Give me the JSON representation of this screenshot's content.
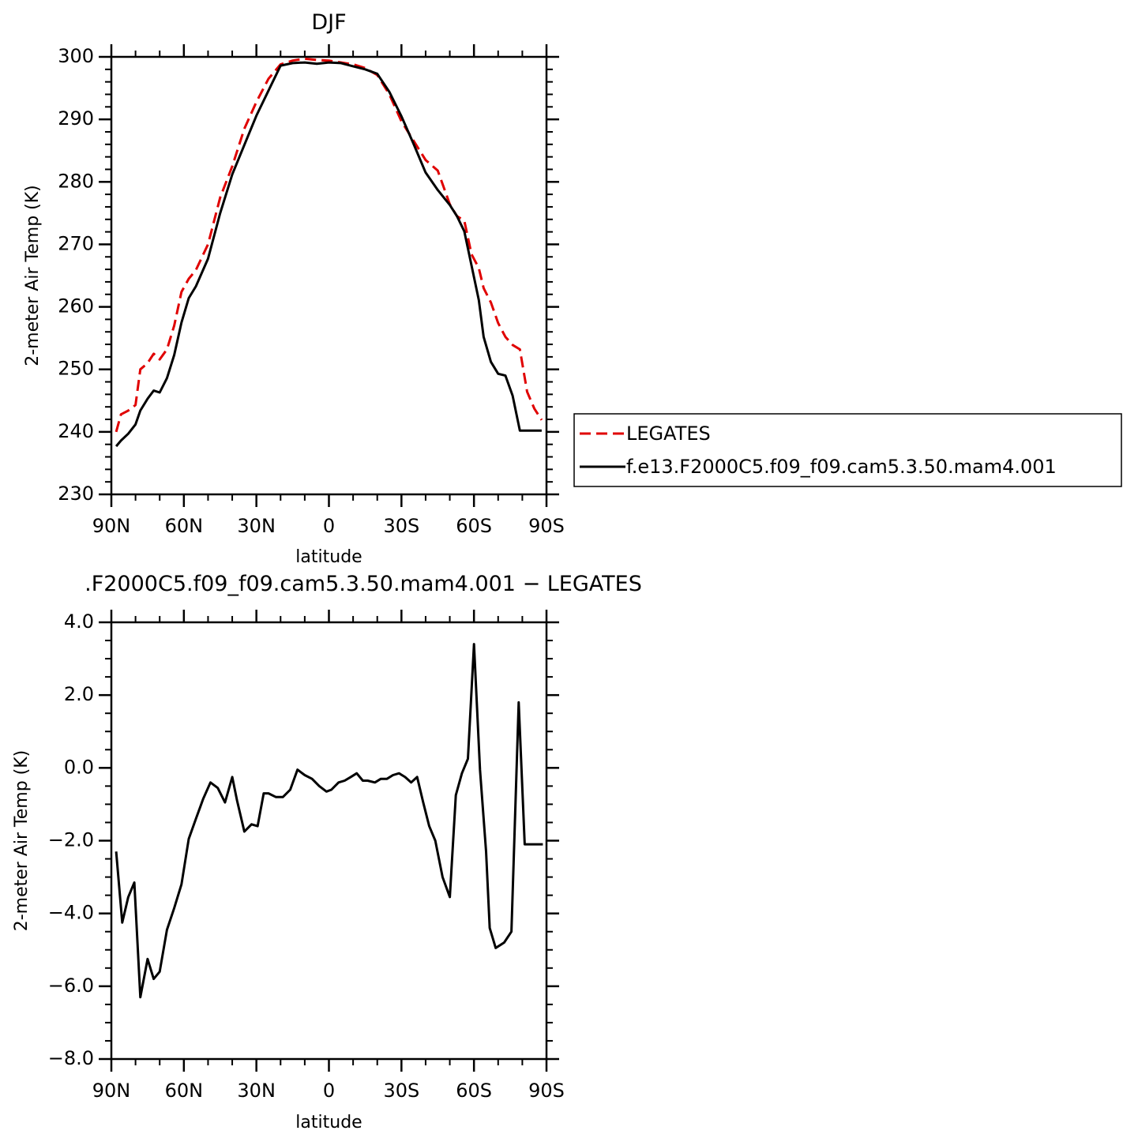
{
  "chart_data": [
    {
      "type": "line",
      "title": "DJF",
      "xlabel": "latitude",
      "ylabel": "2-meter Air Temp (K)",
      "xlim": [
        90,
        -90
      ],
      "ylim": [
        230,
        300
      ],
      "x_ticks": [
        {
          "value": 90,
          "label": "90N"
        },
        {
          "value": 60,
          "label": "60N"
        },
        {
          "value": 30,
          "label": "30N"
        },
        {
          "value": 0,
          "label": "0"
        },
        {
          "value": -30,
          "label": "30S"
        },
        {
          "value": -60,
          "label": "60S"
        },
        {
          "value": -90,
          "label": "90S"
        }
      ],
      "y_ticks": [
        {
          "value": 300,
          "label": "300"
        },
        {
          "value": 290,
          "label": "290"
        },
        {
          "value": 280,
          "label": "280"
        },
        {
          "value": 270,
          "label": "270"
        },
        {
          "value": 260,
          "label": "260"
        },
        {
          "value": 250,
          "label": "250"
        },
        {
          "value": 240,
          "label": "240"
        },
        {
          "value": 230,
          "label": "230"
        }
      ],
      "legend_position": "right",
      "series": [
        {
          "name": "LEGATES",
          "color": "#e00000",
          "dash": true,
          "x": [
            88,
            86,
            83,
            80,
            78,
            75,
            72.5,
            70,
            67,
            64,
            61,
            58,
            55,
            50,
            45,
            40,
            35,
            30,
            25,
            20,
            15,
            10,
            5,
            0,
            -5,
            -10,
            -15,
            -20,
            -25,
            -30,
            -35,
            -40,
            -45,
            -50,
            -53,
            -56,
            -59,
            -62,
            -64,
            -67,
            -70,
            -73,
            -76,
            -79,
            -82,
            -85,
            -88
          ],
          "y": [
            240,
            242.8,
            243.4,
            244.3,
            250,
            251,
            252.5,
            251.6,
            253.2,
            257,
            262.4,
            264.5,
            265.9,
            270,
            277.5,
            282.5,
            288.5,
            292.8,
            296.5,
            298.8,
            299.4,
            299.7,
            299.5,
            299.4,
            299.1,
            298.8,
            298.2,
            297.1,
            294,
            289.7,
            286.6,
            283.5,
            281.8,
            276.4,
            274.5,
            273.8,
            268.4,
            266.2,
            263,
            260.7,
            257.4,
            255.2,
            253.9,
            253.2,
            246.4,
            243.7,
            241.9
          ]
        },
        {
          "name": "f.e13.F2000C5.f09_f09.cam5.3.50.mam4.001",
          "color": "#000000",
          "dash": false,
          "x": [
            88,
            86,
            83,
            80,
            78,
            75,
            72.5,
            70,
            67,
            64,
            61,
            58,
            55,
            50,
            45,
            40,
            35,
            30,
            25,
            20,
            15,
            10,
            5,
            0,
            -5,
            -10,
            -15,
            -20,
            -25,
            -30,
            -35,
            -40,
            -45,
            -50,
            -53,
            -56,
            -59,
            -62,
            -64,
            -67,
            -70,
            -73,
            -76,
            -79,
            -82,
            -85,
            -88
          ],
          "y": [
            237.7,
            238.6,
            239.7,
            241.2,
            243.4,
            245.3,
            246.6,
            246.3,
            248.6,
            252.3,
            257.5,
            261.4,
            263.3,
            267.7,
            275,
            281.2,
            285.9,
            290.6,
            294.6,
            298.6,
            299,
            299.1,
            298.9,
            299.1,
            299,
            298.5,
            298,
            297.3,
            294.4,
            290.5,
            286.1,
            281.5,
            278.7,
            276.3,
            274.5,
            272.1,
            266.6,
            261.1,
            255.2,
            251.2,
            249.3,
            249,
            245.8,
            240.2,
            240.2,
            240.2,
            240.2
          ]
        }
      ]
    },
    {
      "type": "line",
      "title": ".F2000C5.f09_f09.cam5.3.50.mam4.001  −  LEGATES",
      "xlabel": "latitude",
      "ylabel": "2-meter Air Temp (K)",
      "xlim": [
        90,
        -90
      ],
      "ylim": [
        -8,
        4
      ],
      "x_ticks": [
        {
          "value": 90,
          "label": "90N"
        },
        {
          "value": 60,
          "label": "60N"
        },
        {
          "value": 30,
          "label": "30N"
        },
        {
          "value": 0,
          "label": "0"
        },
        {
          "value": -30,
          "label": "30S"
        },
        {
          "value": -60,
          "label": "60S"
        },
        {
          "value": -90,
          "label": "90S"
        }
      ],
      "y_ticks": [
        {
          "value": 4,
          "label": "4.0"
        },
        {
          "value": 2,
          "label": "2.0"
        },
        {
          "value": 0,
          "label": "0.0"
        },
        {
          "value": -2,
          "label": "−2.0"
        },
        {
          "value": -4,
          "label": "−4.0"
        },
        {
          "value": -6,
          "label": "−6.0"
        },
        {
          "value": -8,
          "label": "−8.0"
        }
      ],
      "series": [
        {
          "color": "#000000",
          "dash": false,
          "x": [
            88,
            85.5,
            83,
            80.5,
            78,
            75,
            72.5,
            70,
            67,
            64,
            61,
            58,
            55,
            52,
            49,
            46,
            43,
            40,
            38,
            35,
            32,
            29.5,
            27,
            25,
            22,
            19,
            16,
            13,
            10,
            7,
            4,
            1,
            -1,
            -4,
            -6.5,
            -9,
            -11.5,
            -14,
            -16,
            -19,
            -21.5,
            -24,
            -26.5,
            -29,
            -31.5,
            -34,
            -36.5,
            -39,
            -41.5,
            -44,
            -47,
            -50,
            -52.5,
            -55,
            -57.5,
            -60,
            -62.5,
            -65,
            -66.5,
            -69,
            -72.5,
            -75.5,
            -78.5,
            -81,
            -83.5,
            -86,
            -88.5
          ],
          "y": [
            -2.3,
            -4.25,
            -3.55,
            -3.15,
            -6.3,
            -5.25,
            -5.8,
            -5.6,
            -4.45,
            -3.85,
            -3.2,
            -1.95,
            -1.4,
            -0.85,
            -0.4,
            -0.55,
            -0.95,
            -0.25,
            -0.9,
            -1.75,
            -1.55,
            -1.6,
            -0.7,
            -0.7,
            -0.8,
            -0.8,
            -0.6,
            -0.05,
            -0.2,
            -0.3,
            -0.5,
            -0.65,
            -0.6,
            -0.4,
            -0.35,
            -0.25,
            -0.15,
            -0.35,
            -0.35,
            -0.4,
            -0.3,
            -0.3,
            -0.2,
            -0.15,
            -0.25,
            -0.4,
            -0.25,
            -0.95,
            -1.6,
            -2.0,
            -3.0,
            -3.55,
            -0.75,
            -0.15,
            0.25,
            3.4,
            -0.05,
            -2.3,
            -4.4,
            -4.95,
            -4.8,
            -4.5,
            1.8,
            -2.1,
            -2.1,
            -2.1,
            -2.1
          ]
        }
      ]
    }
  ]
}
